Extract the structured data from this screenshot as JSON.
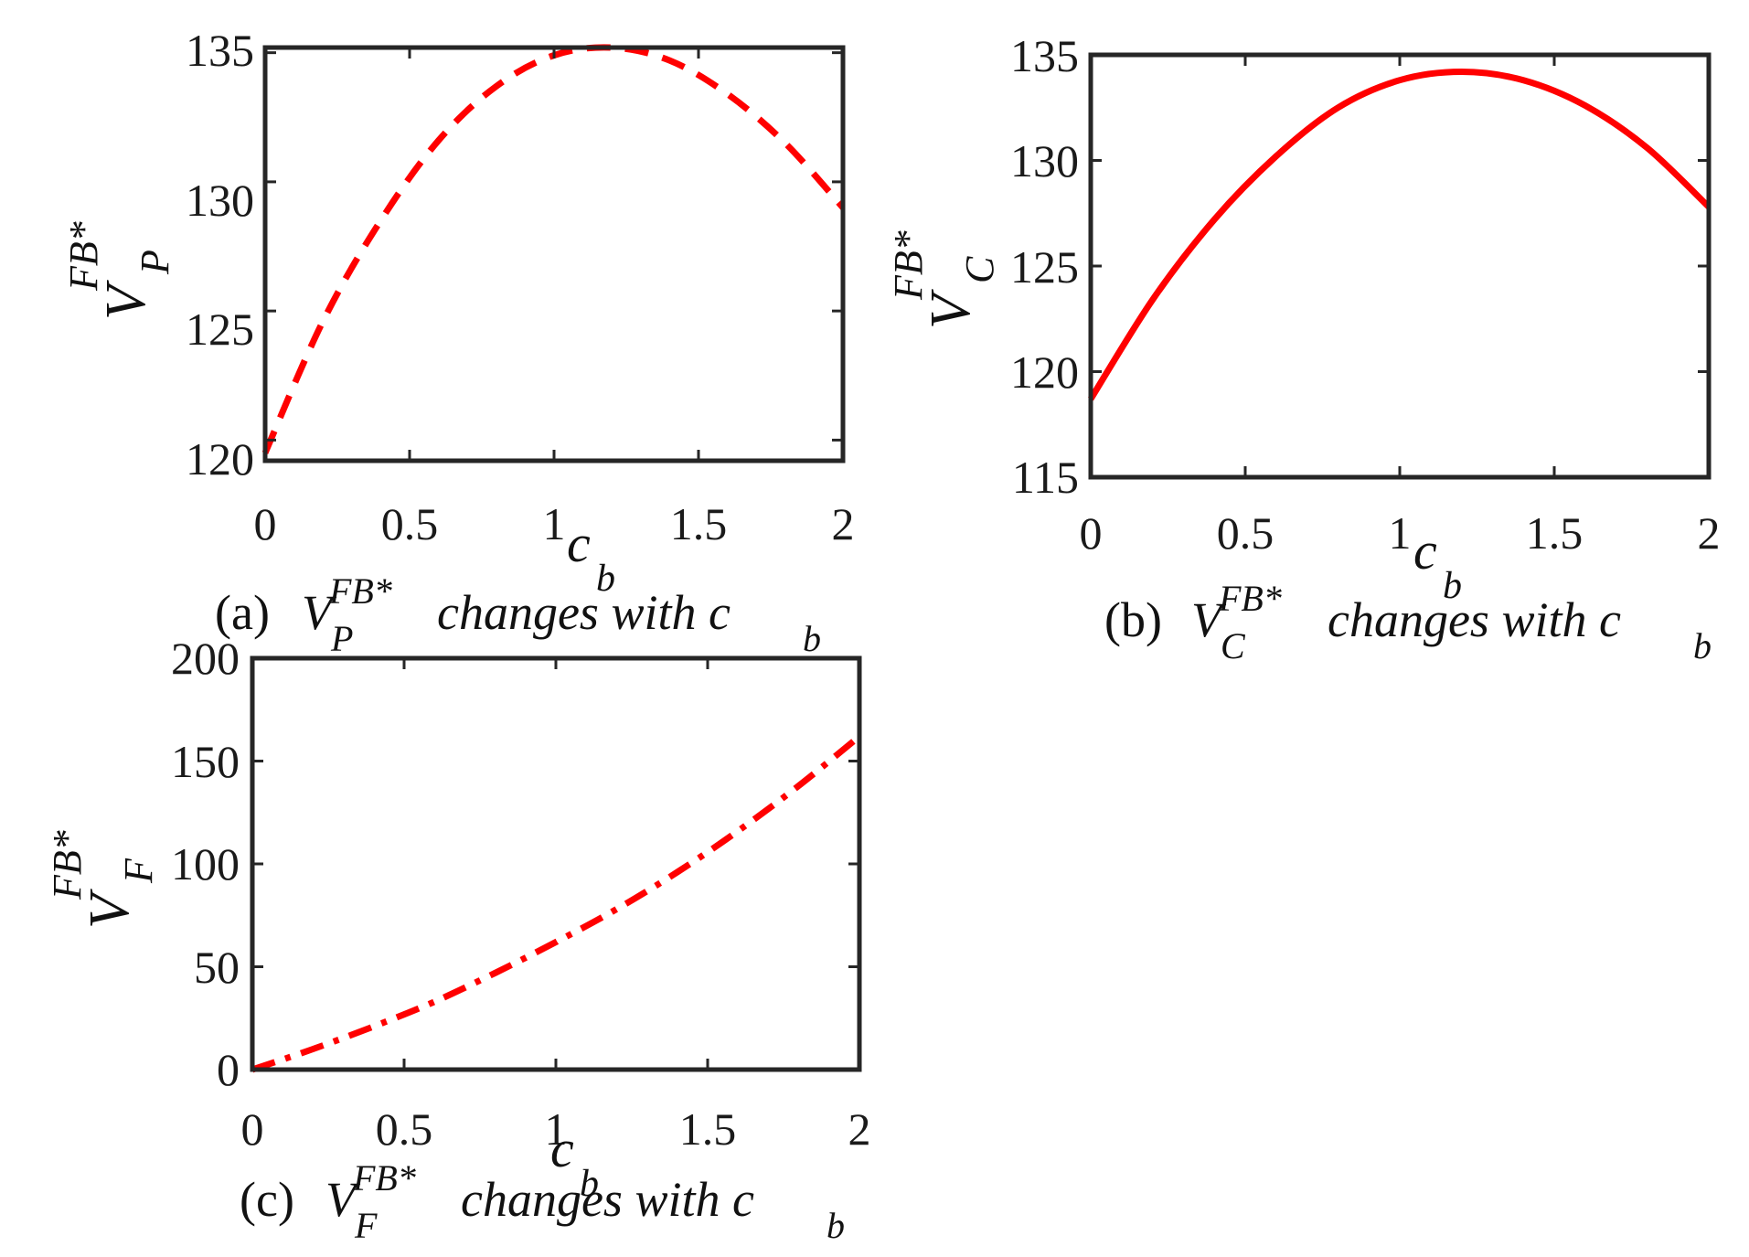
{
  "figure": {
    "colors": {
      "series": "#ff0000",
      "axes": "#262626",
      "text": "#111111"
    }
  },
  "chart_data": [
    {
      "id": "a",
      "type": "line",
      "line_style": "dashed",
      "x": [
        0,
        0.2,
        0.4,
        0.6,
        0.8,
        1.0,
        1.2,
        1.4,
        1.6,
        1.8,
        2.0
      ],
      "y": [
        119.5,
        124.6,
        128.5,
        131.6,
        133.7,
        134.9,
        135.2,
        134.7,
        133.4,
        131.5,
        129.0
      ],
      "xlim": [
        0,
        2
      ],
      "ylim": [
        119.2,
        135.2
      ],
      "xticks": [
        "0",
        "0.5",
        "1",
        "1.5",
        "2"
      ],
      "yticks": [
        "120",
        "125",
        "130",
        "135"
      ],
      "xlabel": "c",
      "xlabel_sub": "b",
      "ylabel": "V",
      "ylabel_sup": "FB*",
      "ylabel_sub": "P",
      "caption": {
        "prefix": "(a)",
        "var": "V",
        "var_sup": "FB*",
        "var_sub": "P",
        "text": "changes with c",
        "text_sub": "b"
      }
    },
    {
      "id": "b",
      "type": "line",
      "line_style": "solid",
      "x": [
        0,
        0.2,
        0.4,
        0.6,
        0.8,
        1.0,
        1.2,
        1.4,
        1.6,
        1.8,
        2.0
      ],
      "y": [
        118.7,
        123.4,
        127.2,
        130.2,
        132.5,
        133.8,
        134.2,
        133.8,
        132.6,
        130.6,
        127.8
      ],
      "xlim": [
        0,
        2
      ],
      "ylim": [
        115,
        135
      ],
      "xticks": [
        "0",
        "0.5",
        "1",
        "1.5",
        "2"
      ],
      "yticks": [
        "115",
        "120",
        "125",
        "130",
        "135"
      ],
      "xlabel": "c",
      "xlabel_sub": "b",
      "ylabel": "V",
      "ylabel_sup": "FB*",
      "ylabel_sub": "C",
      "caption": {
        "prefix": "(b)",
        "var": "V",
        "var_sup": "FB*",
        "var_sub": "C",
        "text": "changes with c",
        "text_sub": "b"
      }
    },
    {
      "id": "c",
      "type": "line",
      "line_style": "dashdot",
      "x": [
        0,
        0.2,
        0.4,
        0.6,
        0.8,
        1.0,
        1.2,
        1.4,
        1.6,
        1.8,
        2.0
      ],
      "y": [
        0,
        10,
        21,
        33,
        47,
        62,
        78,
        96,
        116,
        138,
        162
      ],
      "xlim": [
        0,
        2
      ],
      "ylim": [
        0,
        200
      ],
      "xticks": [
        "0",
        "0.5",
        "1",
        "1.5",
        "2"
      ],
      "yticks": [
        "0",
        "50",
        "100",
        "150",
        "200"
      ],
      "xlabel": "c",
      "xlabel_sub": "b",
      "ylabel": "V",
      "ylabel_sup": "FB*",
      "ylabel_sub": "F",
      "caption": {
        "prefix": "(c)",
        "var": "V",
        "var_sup": "FB*",
        "var_sub": "F",
        "text": "changes with c",
        "text_sub": "b"
      }
    }
  ]
}
